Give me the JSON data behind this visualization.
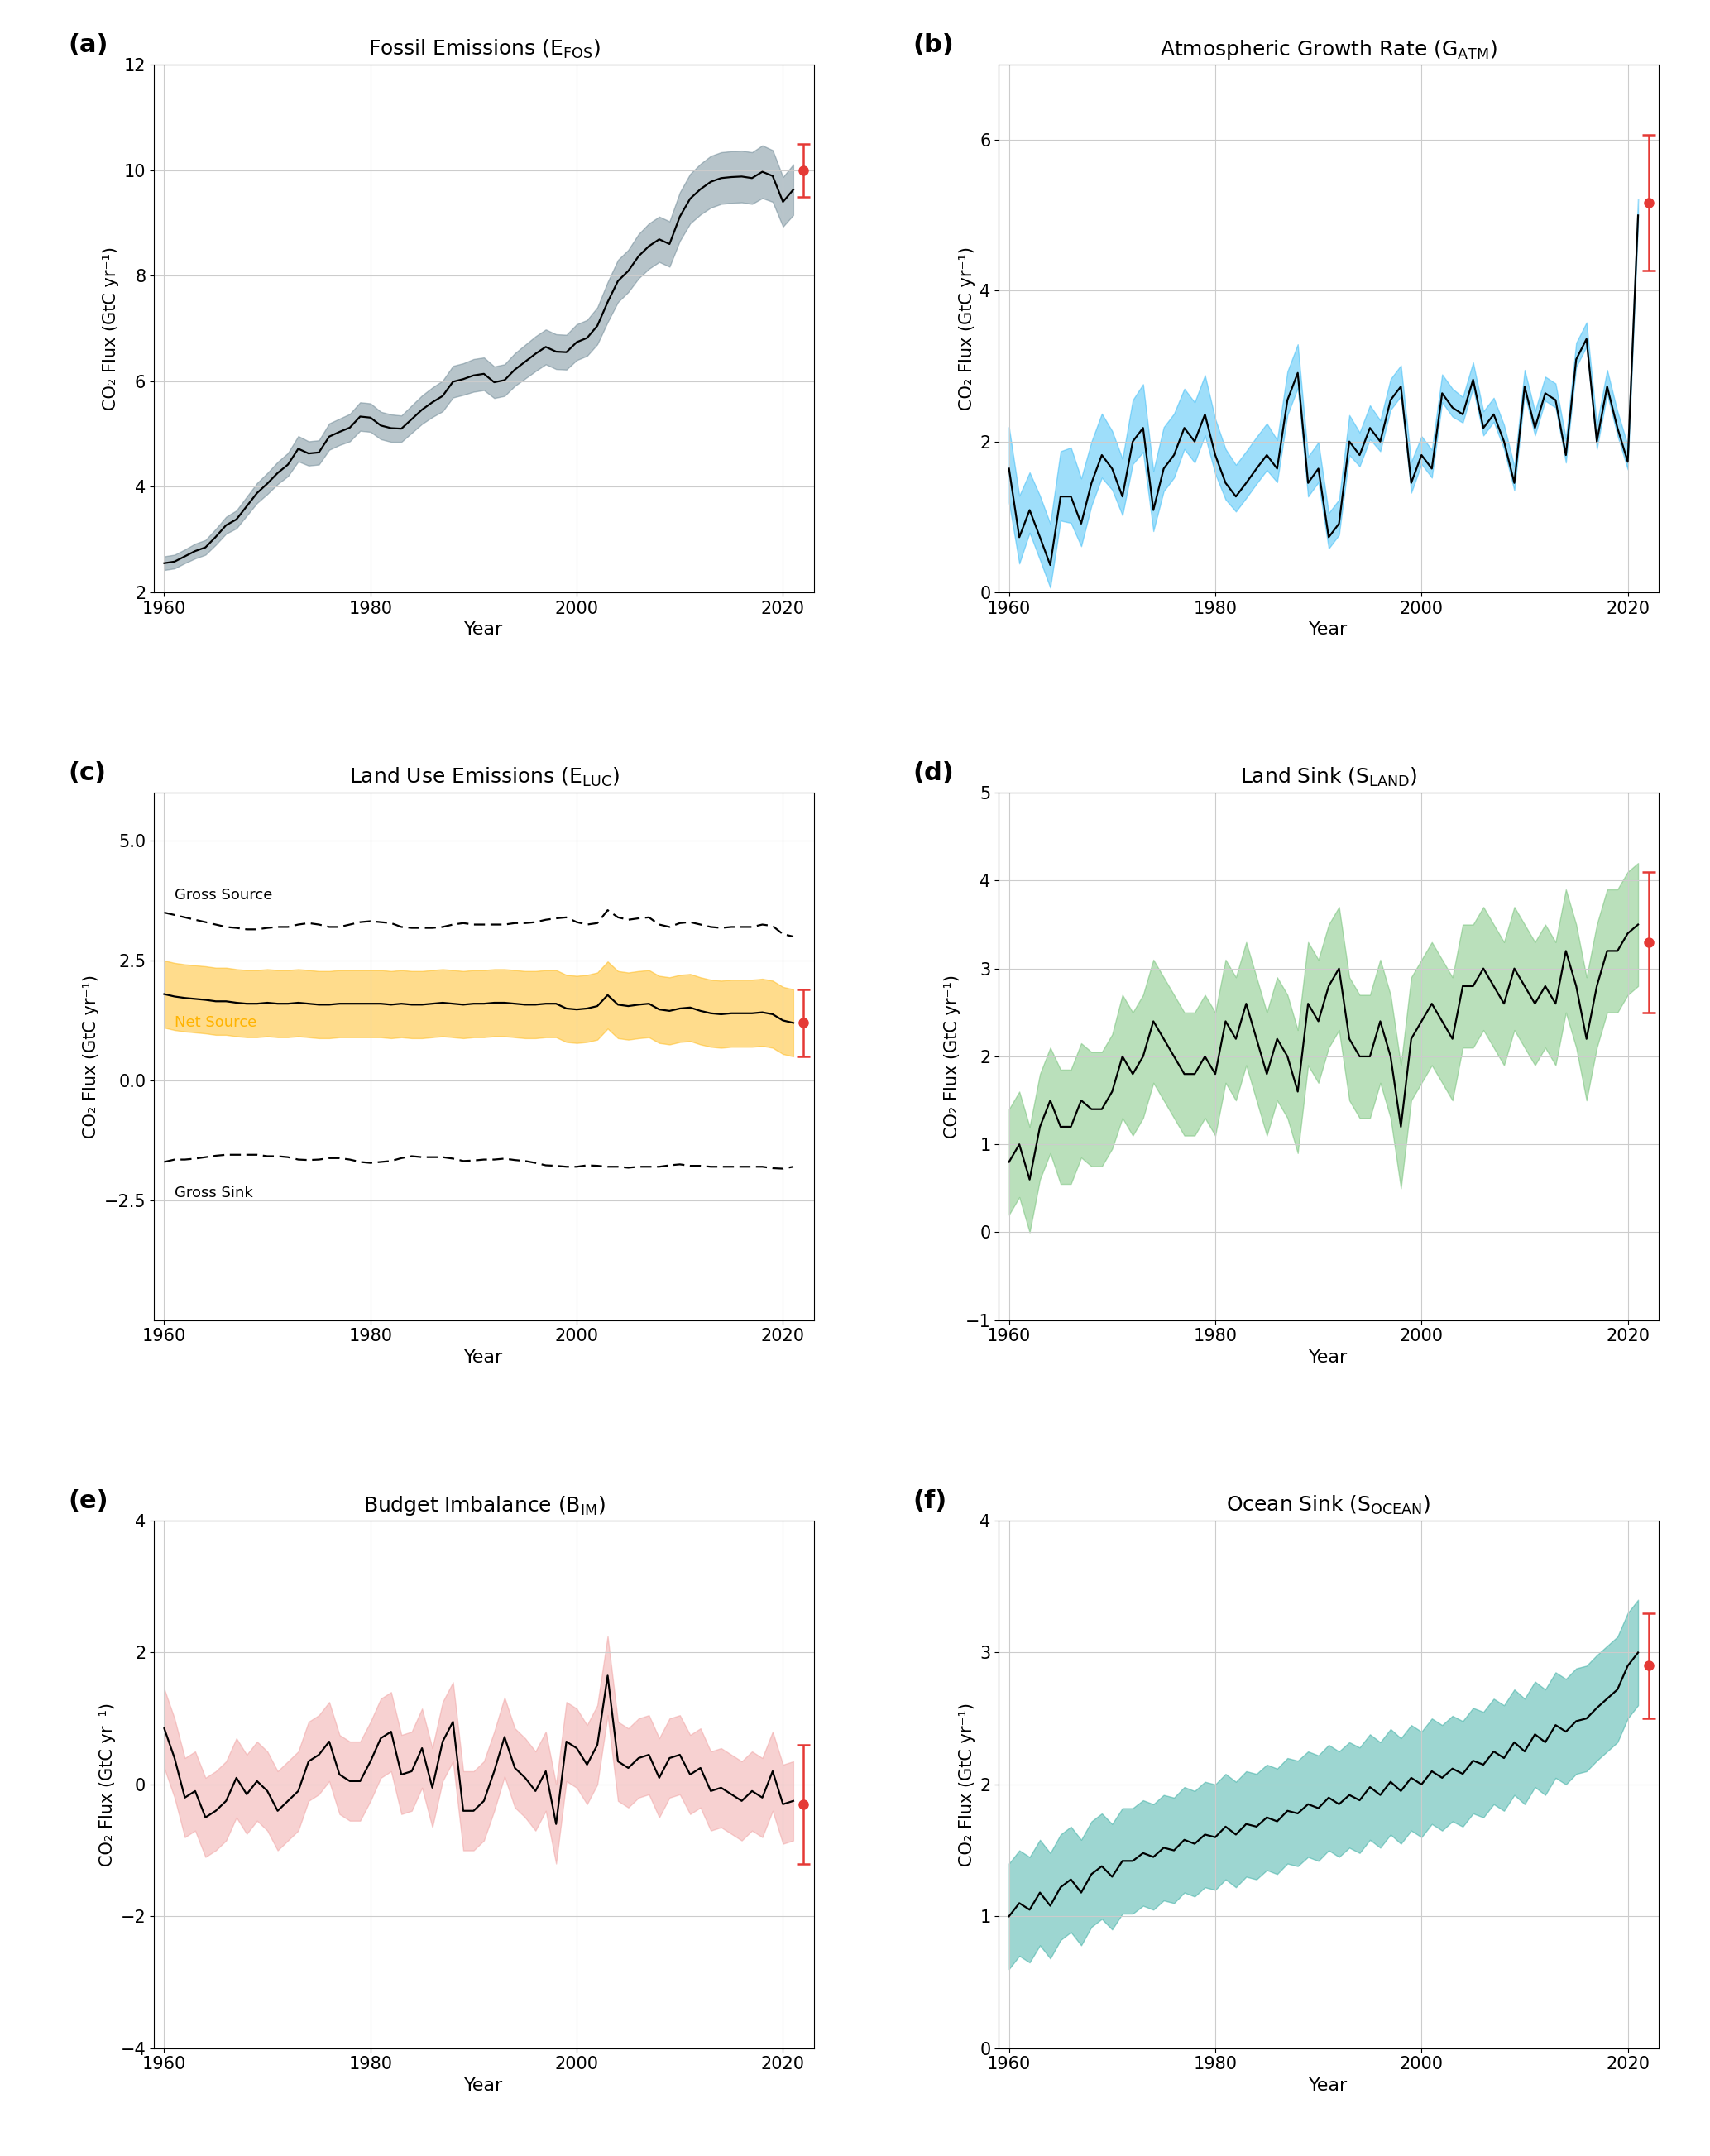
{
  "years": [
    1960,
    1961,
    1962,
    1963,
    1964,
    1965,
    1966,
    1967,
    1968,
    1969,
    1970,
    1971,
    1972,
    1973,
    1974,
    1975,
    1976,
    1977,
    1978,
    1979,
    1980,
    1981,
    1982,
    1983,
    1984,
    1985,
    1986,
    1987,
    1988,
    1989,
    1990,
    1991,
    1992,
    1993,
    1994,
    1995,
    1996,
    1997,
    1998,
    1999,
    2000,
    2001,
    2002,
    2003,
    2004,
    2005,
    2006,
    2007,
    2008,
    2009,
    2010,
    2011,
    2012,
    2013,
    2014,
    2015,
    2016,
    2017,
    2018,
    2019,
    2020,
    2021
  ],
  "efos_mean": [
    2.55,
    2.58,
    2.68,
    2.78,
    2.85,
    3.05,
    3.27,
    3.38,
    3.63,
    3.88,
    4.06,
    4.26,
    4.42,
    4.72,
    4.63,
    4.65,
    4.95,
    5.04,
    5.12,
    5.33,
    5.31,
    5.16,
    5.11,
    5.1,
    5.28,
    5.46,
    5.6,
    5.72,
    5.99,
    6.04,
    6.11,
    6.14,
    5.98,
    6.02,
    6.22,
    6.37,
    6.52,
    6.65,
    6.56,
    6.55,
    6.74,
    6.82,
    7.05,
    7.5,
    7.9,
    8.09,
    8.37,
    8.56,
    8.69,
    8.6,
    9.12,
    9.46,
    9.64,
    9.78,
    9.85,
    9.87,
    9.88,
    9.85,
    9.97,
    9.89,
    9.4,
    9.63
  ],
  "efos_std": [
    0.13,
    0.13,
    0.13,
    0.14,
    0.14,
    0.15,
    0.16,
    0.17,
    0.18,
    0.19,
    0.2,
    0.21,
    0.22,
    0.24,
    0.23,
    0.23,
    0.25,
    0.25,
    0.26,
    0.27,
    0.27,
    0.26,
    0.26,
    0.25,
    0.26,
    0.27,
    0.28,
    0.29,
    0.3,
    0.3,
    0.31,
    0.31,
    0.3,
    0.3,
    0.31,
    0.32,
    0.33,
    0.33,
    0.33,
    0.33,
    0.34,
    0.34,
    0.35,
    0.38,
    0.4,
    0.4,
    0.42,
    0.43,
    0.43,
    0.43,
    0.46,
    0.47,
    0.48,
    0.49,
    0.49,
    0.49,
    0.49,
    0.49,
    0.5,
    0.49,
    0.47,
    0.48
  ],
  "efos_proj": 10.0,
  "efos_proj_err": 0.5,
  "gatm_mean": [
    1.64,
    0.73,
    1.09,
    0.73,
    0.36,
    1.27,
    1.27,
    0.91,
    1.45,
    1.82,
    1.64,
    1.27,
    2.0,
    2.18,
    1.09,
    1.64,
    1.82,
    2.18,
    2.0,
    2.36,
    1.82,
    1.45,
    1.27,
    1.45,
    1.64,
    1.82,
    1.64,
    2.55,
    2.91,
    1.45,
    1.64,
    0.73,
    0.91,
    2.0,
    1.82,
    2.18,
    2.0,
    2.55,
    2.73,
    1.45,
    1.82,
    1.64,
    2.64,
    2.45,
    2.36,
    2.82,
    2.18,
    2.36,
    2.0,
    1.45,
    2.73,
    2.18,
    2.64,
    2.55,
    1.82,
    3.09,
    3.36,
    2.0,
    2.73,
    2.18,
    1.73,
    5.0
  ],
  "gatm_std_lo": [
    0.45,
    0.35,
    0.3,
    0.3,
    0.3,
    0.32,
    0.35,
    0.3,
    0.3,
    0.3,
    0.28,
    0.25,
    0.3,
    0.32,
    0.28,
    0.3,
    0.3,
    0.28,
    0.28,
    0.28,
    0.25,
    0.22,
    0.2,
    0.2,
    0.2,
    0.2,
    0.18,
    0.2,
    0.2,
    0.18,
    0.18,
    0.15,
    0.15,
    0.18,
    0.15,
    0.15,
    0.13,
    0.13,
    0.13,
    0.13,
    0.12,
    0.12,
    0.12,
    0.12,
    0.11,
    0.11,
    0.1,
    0.1,
    0.1,
    0.1,
    0.1,
    0.1,
    0.1,
    0.1,
    0.1,
    0.1,
    0.1,
    0.1,
    0.1,
    0.1,
    0.1,
    0.1
  ],
  "gatm_std_hi": [
    0.55,
    0.55,
    0.5,
    0.55,
    0.55,
    0.6,
    0.65,
    0.6,
    0.55,
    0.55,
    0.5,
    0.5,
    0.55,
    0.58,
    0.52,
    0.55,
    0.55,
    0.52,
    0.52,
    0.52,
    0.48,
    0.45,
    0.42,
    0.42,
    0.42,
    0.42,
    0.38,
    0.38,
    0.38,
    0.35,
    0.35,
    0.32,
    0.32,
    0.35,
    0.3,
    0.3,
    0.28,
    0.28,
    0.28,
    0.28,
    0.25,
    0.25,
    0.25,
    0.25,
    0.23,
    0.23,
    0.22,
    0.22,
    0.22,
    0.22,
    0.22,
    0.22,
    0.22,
    0.22,
    0.22,
    0.22,
    0.22,
    0.22,
    0.22,
    0.22,
    0.22,
    0.22
  ],
  "gatm_proj": 5.17,
  "gatm_proj_err": 0.9,
  "eluc_mean": [
    1.8,
    1.75,
    1.72,
    1.7,
    1.68,
    1.65,
    1.65,
    1.62,
    1.6,
    1.6,
    1.62,
    1.6,
    1.6,
    1.62,
    1.6,
    1.58,
    1.58,
    1.6,
    1.6,
    1.6,
    1.6,
    1.6,
    1.58,
    1.6,
    1.58,
    1.58,
    1.6,
    1.62,
    1.6,
    1.58,
    1.6,
    1.6,
    1.62,
    1.62,
    1.6,
    1.58,
    1.58,
    1.6,
    1.6,
    1.5,
    1.48,
    1.5,
    1.55,
    1.78,
    1.58,
    1.55,
    1.58,
    1.6,
    1.48,
    1.45,
    1.5,
    1.52,
    1.45,
    1.4,
    1.38,
    1.4,
    1.4,
    1.4,
    1.42,
    1.38,
    1.25,
    1.2
  ],
  "eluc_std": [
    0.7,
    0.7,
    0.7,
    0.7,
    0.7,
    0.7,
    0.7,
    0.7,
    0.7,
    0.7,
    0.7,
    0.7,
    0.7,
    0.7,
    0.7,
    0.7,
    0.7,
    0.7,
    0.7,
    0.7,
    0.7,
    0.7,
    0.7,
    0.7,
    0.7,
    0.7,
    0.7,
    0.7,
    0.7,
    0.7,
    0.7,
    0.7,
    0.7,
    0.7,
    0.7,
    0.7,
    0.7,
    0.7,
    0.7,
    0.7,
    0.7,
    0.7,
    0.7,
    0.7,
    0.7,
    0.7,
    0.7,
    0.7,
    0.7,
    0.7,
    0.7,
    0.7,
    0.7,
    0.7,
    0.7,
    0.7,
    0.7,
    0.7,
    0.7,
    0.7,
    0.7,
    0.7
  ],
  "eluc_proj": 1.2,
  "eluc_proj_err": 0.7,
  "eluc_gross_source": [
    3.5,
    3.45,
    3.4,
    3.35,
    3.3,
    3.25,
    3.2,
    3.18,
    3.15,
    3.15,
    3.18,
    3.2,
    3.2,
    3.25,
    3.28,
    3.25,
    3.2,
    3.2,
    3.25,
    3.3,
    3.32,
    3.3,
    3.28,
    3.2,
    3.18,
    3.18,
    3.18,
    3.2,
    3.25,
    3.28,
    3.25,
    3.25,
    3.25,
    3.25,
    3.28,
    3.28,
    3.3,
    3.35,
    3.38,
    3.4,
    3.3,
    3.25,
    3.28,
    3.55,
    3.4,
    3.35,
    3.38,
    3.4,
    3.25,
    3.2,
    3.28,
    3.3,
    3.25,
    3.2,
    3.18,
    3.2,
    3.2,
    3.2,
    3.25,
    3.22,
    3.05,
    3.0
  ],
  "eluc_gross_sink": [
    -1.7,
    -1.65,
    -1.65,
    -1.63,
    -1.6,
    -1.57,
    -1.55,
    -1.55,
    -1.55,
    -1.55,
    -1.58,
    -1.58,
    -1.6,
    -1.65,
    -1.66,
    -1.65,
    -1.62,
    -1.62,
    -1.65,
    -1.7,
    -1.72,
    -1.7,
    -1.68,
    -1.62,
    -1.58,
    -1.6,
    -1.6,
    -1.6,
    -1.63,
    -1.68,
    -1.67,
    -1.65,
    -1.65,
    -1.63,
    -1.66,
    -1.68,
    -1.72,
    -1.77,
    -1.78,
    -1.8,
    -1.8,
    -1.77,
    -1.78,
    -1.8,
    -1.8,
    -1.82,
    -1.8,
    -1.8,
    -1.8,
    -1.77,
    -1.75,
    -1.78,
    -1.78,
    -1.8,
    -1.8,
    -1.8,
    -1.8,
    -1.8,
    -1.8,
    -1.83,
    -1.84,
    -1.8
  ],
  "sland_mean": [
    0.8,
    1.0,
    0.6,
    1.2,
    1.5,
    1.2,
    1.2,
    1.5,
    1.4,
    1.4,
    1.6,
    2.0,
    1.8,
    2.0,
    2.4,
    2.2,
    2.0,
    1.8,
    1.8,
    2.0,
    1.8,
    2.4,
    2.2,
    2.6,
    2.2,
    1.8,
    2.2,
    2.0,
    1.6,
    2.6,
    2.4,
    2.8,
    3.0,
    2.2,
    2.0,
    2.0,
    2.4,
    2.0,
    1.2,
    2.2,
    2.4,
    2.6,
    2.4,
    2.2,
    2.8,
    2.8,
    3.0,
    2.8,
    2.6,
    3.0,
    2.8,
    2.6,
    2.8,
    2.6,
    3.2,
    2.8,
    2.2,
    2.8,
    3.2,
    3.2,
    3.4,
    3.5
  ],
  "sland_std": [
    0.6,
    0.6,
    0.6,
    0.6,
    0.6,
    0.65,
    0.65,
    0.65,
    0.65,
    0.65,
    0.65,
    0.7,
    0.7,
    0.7,
    0.7,
    0.7,
    0.7,
    0.7,
    0.7,
    0.7,
    0.7,
    0.7,
    0.7,
    0.7,
    0.7,
    0.7,
    0.7,
    0.7,
    0.7,
    0.7,
    0.7,
    0.7,
    0.7,
    0.7,
    0.7,
    0.7,
    0.7,
    0.7,
    0.7,
    0.7,
    0.7,
    0.7,
    0.7,
    0.7,
    0.7,
    0.7,
    0.7,
    0.7,
    0.7,
    0.7,
    0.7,
    0.7,
    0.7,
    0.7,
    0.7,
    0.7,
    0.7,
    0.7,
    0.7,
    0.7,
    0.7,
    0.7
  ],
  "sland_proj": 3.3,
  "sland_proj_err": 0.8,
  "socean_mean": [
    1.0,
    1.1,
    1.05,
    1.18,
    1.08,
    1.22,
    1.28,
    1.18,
    1.32,
    1.38,
    1.3,
    1.42,
    1.42,
    1.48,
    1.45,
    1.52,
    1.5,
    1.58,
    1.55,
    1.62,
    1.6,
    1.68,
    1.62,
    1.7,
    1.68,
    1.75,
    1.72,
    1.8,
    1.78,
    1.85,
    1.82,
    1.9,
    1.85,
    1.92,
    1.88,
    1.98,
    1.92,
    2.02,
    1.95,
    2.05,
    2.0,
    2.1,
    2.05,
    2.12,
    2.08,
    2.18,
    2.15,
    2.25,
    2.2,
    2.32,
    2.25,
    2.38,
    2.32,
    2.45,
    2.4,
    2.48,
    2.5,
    2.58,
    2.65,
    2.72,
    2.9,
    3.0
  ],
  "socean_std": [
    0.4,
    0.4,
    0.4,
    0.4,
    0.4,
    0.4,
    0.4,
    0.4,
    0.4,
    0.4,
    0.4,
    0.4,
    0.4,
    0.4,
    0.4,
    0.4,
    0.4,
    0.4,
    0.4,
    0.4,
    0.4,
    0.4,
    0.4,
    0.4,
    0.4,
    0.4,
    0.4,
    0.4,
    0.4,
    0.4,
    0.4,
    0.4,
    0.4,
    0.4,
    0.4,
    0.4,
    0.4,
    0.4,
    0.4,
    0.4,
    0.4,
    0.4,
    0.4,
    0.4,
    0.4,
    0.4,
    0.4,
    0.4,
    0.4,
    0.4,
    0.4,
    0.4,
    0.4,
    0.4,
    0.4,
    0.4,
    0.4,
    0.4,
    0.4,
    0.4,
    0.4,
    0.4
  ],
  "socean_proj": 2.9,
  "socean_proj_err": 0.4,
  "bim_mean": [
    0.85,
    0.4,
    -0.2,
    -0.1,
    -0.5,
    -0.4,
    -0.25,
    0.1,
    -0.15,
    0.05,
    -0.1,
    -0.4,
    -0.25,
    -0.1,
    0.35,
    0.45,
    0.65,
    0.15,
    0.05,
    0.05,
    0.35,
    0.7,
    0.8,
    0.15,
    0.2,
    0.55,
    -0.05,
    0.65,
    0.95,
    -0.4,
    -0.4,
    -0.25,
    0.2,
    0.72,
    0.25,
    0.1,
    -0.1,
    0.2,
    -0.6,
    0.65,
    0.55,
    0.3,
    0.6,
    1.65,
    0.35,
    0.25,
    0.4,
    0.45,
    0.1,
    0.4,
    0.45,
    0.15,
    0.25,
    -0.1,
    -0.05,
    -0.15,
    -0.25,
    -0.1,
    -0.2,
    0.2,
    -0.3,
    -0.25
  ],
  "bim_std": [
    0.6,
    0.6,
    0.6,
    0.6,
    0.6,
    0.6,
    0.6,
    0.6,
    0.6,
    0.6,
    0.6,
    0.6,
    0.6,
    0.6,
    0.6,
    0.6,
    0.6,
    0.6,
    0.6,
    0.6,
    0.6,
    0.6,
    0.6,
    0.6,
    0.6,
    0.6,
    0.6,
    0.6,
    0.6,
    0.6,
    0.6,
    0.6,
    0.6,
    0.6,
    0.6,
    0.6,
    0.6,
    0.6,
    0.6,
    0.6,
    0.6,
    0.6,
    0.6,
    0.6,
    0.6,
    0.6,
    0.6,
    0.6,
    0.6,
    0.6,
    0.6,
    0.6,
    0.6,
    0.6,
    0.6,
    0.6,
    0.6,
    0.6,
    0.6,
    0.6,
    0.6,
    0.6
  ],
  "bim_proj": -0.3,
  "bim_proj_err": 0.9,
  "efos_color": "#607d8b",
  "gatm_color": "#29b6f6",
  "eluc_color": "#ffb300",
  "sland_color": "#66bb6a",
  "socean_color": "#26a69a",
  "bim_color": "#ef9a9a",
  "proj_year": 2022,
  "red_color": "#e53935",
  "ylabel": "CO₂ Flux (GtC yr⁻¹)",
  "panel_labels": [
    "(a)",
    "(b)",
    "(c)",
    "(d)",
    "(e)",
    "(f)"
  ],
  "xlim": [
    1959,
    2023
  ],
  "xticks": [
    1960,
    1980,
    2000,
    2020
  ],
  "ylim_a": [
    2,
    12
  ],
  "yticks_a": [
    2,
    4,
    6,
    8,
    10,
    12
  ],
  "ylim_b": [
    0,
    7
  ],
  "yticks_b": [
    0,
    2,
    4,
    6
  ],
  "ylim_c": [
    -5.0,
    6.0
  ],
  "yticks_c": [
    -2.5,
    0.0,
    2.5,
    5.0
  ],
  "ylim_d": [
    -1,
    5
  ],
  "yticks_d": [
    -1,
    0,
    1,
    2,
    3,
    4,
    5
  ],
  "ylim_e": [
    -4,
    4
  ],
  "yticks_e": [
    -4,
    -2,
    0,
    2,
    4
  ],
  "ylim_f": [
    0,
    4
  ],
  "yticks_f": [
    0,
    1,
    2,
    3,
    4
  ]
}
